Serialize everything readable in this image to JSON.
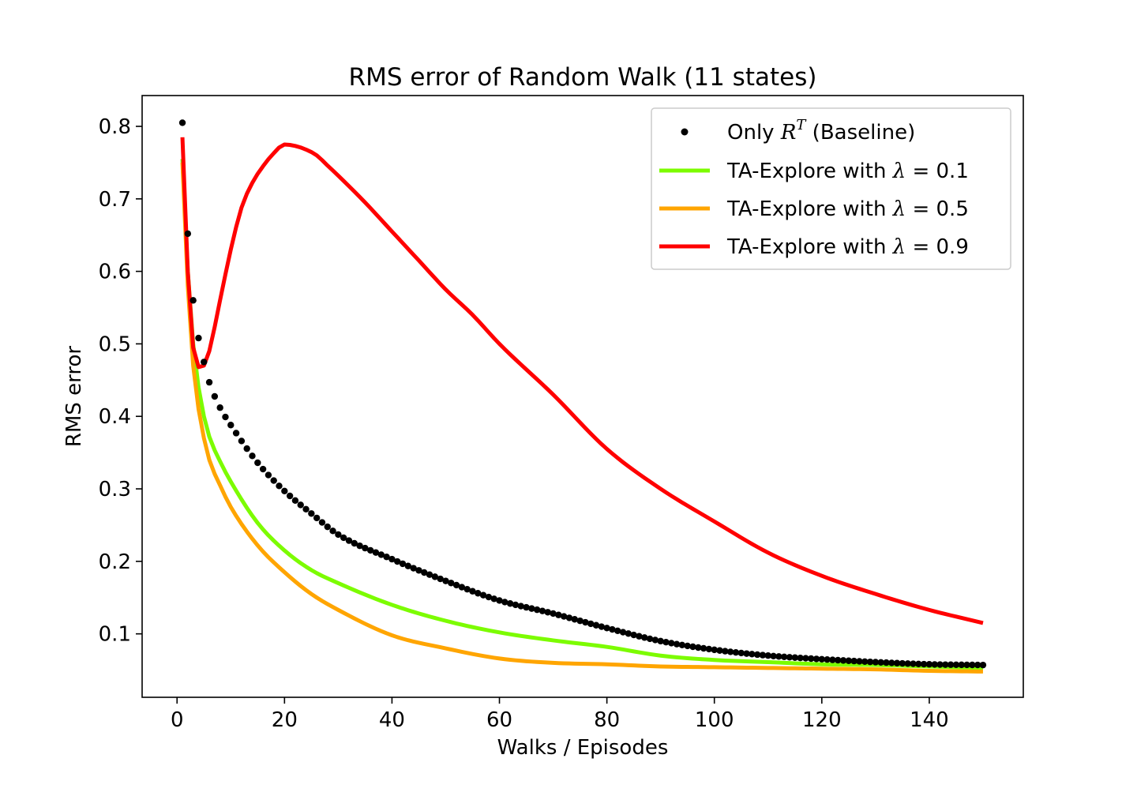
{
  "chart_data": {
    "type": "line",
    "title": "RMS error of Random Walk (11 states)",
    "xlabel": "Walks / Episodes",
    "ylabel": "RMS error",
    "xlim": [
      -6.5,
      157.5
    ],
    "ylim": [
      0.0125,
      0.8425
    ],
    "xticks": [
      0,
      20,
      40,
      60,
      80,
      100,
      120,
      140
    ],
    "yticks": [
      0.1,
      0.2,
      0.3,
      0.4,
      0.5,
      0.6,
      0.7,
      0.8
    ],
    "xtick_labels": [
      "0",
      "20",
      "40",
      "60",
      "80",
      "100",
      "120",
      "140"
    ],
    "ytick_labels": [
      "0.1",
      "0.2",
      "0.3",
      "0.4",
      "0.5",
      "0.6",
      "0.7",
      "0.8"
    ],
    "grid": false,
    "legend_position": "top-right",
    "legend_labels": {
      "baseline": {
        "prefix": "Only ",
        "base": "R",
        "sup": "T",
        "suffix": " (Baseline)"
      },
      "s01": {
        "prefix": "TA-Explore with ",
        "sym": "λ",
        "suffix": " = 0.1"
      },
      "s05": {
        "prefix": "TA-Explore with ",
        "sym": "λ",
        "suffix": " = 0.5"
      },
      "s09": {
        "prefix": "TA-Explore with ",
        "sym": "λ",
        "suffix": " = 0.9"
      }
    },
    "series": [
      {
        "key": "baseline",
        "style": "scatter",
        "color": "#000000",
        "x": [
          1,
          2,
          3,
          4,
          5,
          6,
          8,
          10,
          15,
          20,
          25,
          30,
          40,
          50,
          60,
          70,
          80,
          90,
          100,
          110,
          120,
          130,
          140,
          150
        ],
        "y": [
          0.805,
          0.652,
          0.56,
          0.508,
          0.475,
          0.447,
          0.412,
          0.388,
          0.336,
          0.297,
          0.266,
          0.237,
          0.203,
          0.173,
          0.146,
          0.128,
          0.108,
          0.09,
          0.078,
          0.07,
          0.065,
          0.061,
          0.058,
          0.057
        ]
      },
      {
        "key": "s01",
        "style": "line",
        "color": "#7cfc00",
        "x": [
          1,
          2,
          3,
          4,
          5,
          6,
          8,
          10,
          15,
          20,
          25,
          30,
          40,
          50,
          60,
          70,
          80,
          90,
          100,
          110,
          120,
          130,
          140,
          150
        ],
        "y": [
          0.755,
          0.6,
          0.5,
          0.44,
          0.4,
          0.372,
          0.338,
          0.31,
          0.253,
          0.215,
          0.188,
          0.17,
          0.14,
          0.118,
          0.102,
          0.091,
          0.082,
          0.07,
          0.064,
          0.061,
          0.058,
          0.057,
          0.055,
          0.053
        ]
      },
      {
        "key": "s05",
        "style": "line",
        "color": "#ffa500",
        "x": [
          1,
          2,
          3,
          4,
          5,
          6,
          8,
          10,
          15,
          20,
          25,
          30,
          40,
          50,
          60,
          70,
          80,
          90,
          100,
          110,
          120,
          130,
          140,
          150
        ],
        "y": [
          0.75,
          0.58,
          0.47,
          0.41,
          0.37,
          0.34,
          0.305,
          0.275,
          0.222,
          0.185,
          0.155,
          0.133,
          0.098,
          0.08,
          0.066,
          0.06,
          0.058,
          0.055,
          0.054,
          0.053,
          0.052,
          0.051,
          0.049,
          0.048
        ]
      },
      {
        "key": "s09",
        "style": "line",
        "color": "#ff0000",
        "x": [
          1,
          2,
          3,
          4,
          5,
          6,
          8,
          10,
          12,
          14,
          16,
          18,
          20,
          22,
          24,
          26,
          28,
          30,
          35,
          40,
          45,
          50,
          55,
          60,
          70,
          80,
          90,
          100,
          110,
          120,
          130,
          140,
          150
        ],
        "y": [
          0.785,
          0.6,
          0.495,
          0.468,
          0.47,
          0.49,
          0.56,
          0.63,
          0.688,
          0.722,
          0.745,
          0.763,
          0.775,
          0.773,
          0.768,
          0.76,
          0.746,
          0.732,
          0.695,
          0.655,
          0.615,
          0.575,
          0.54,
          0.5,
          0.43,
          0.355,
          0.3,
          0.255,
          0.212,
          0.18,
          0.155,
          0.133,
          0.115
        ]
      }
    ]
  }
}
